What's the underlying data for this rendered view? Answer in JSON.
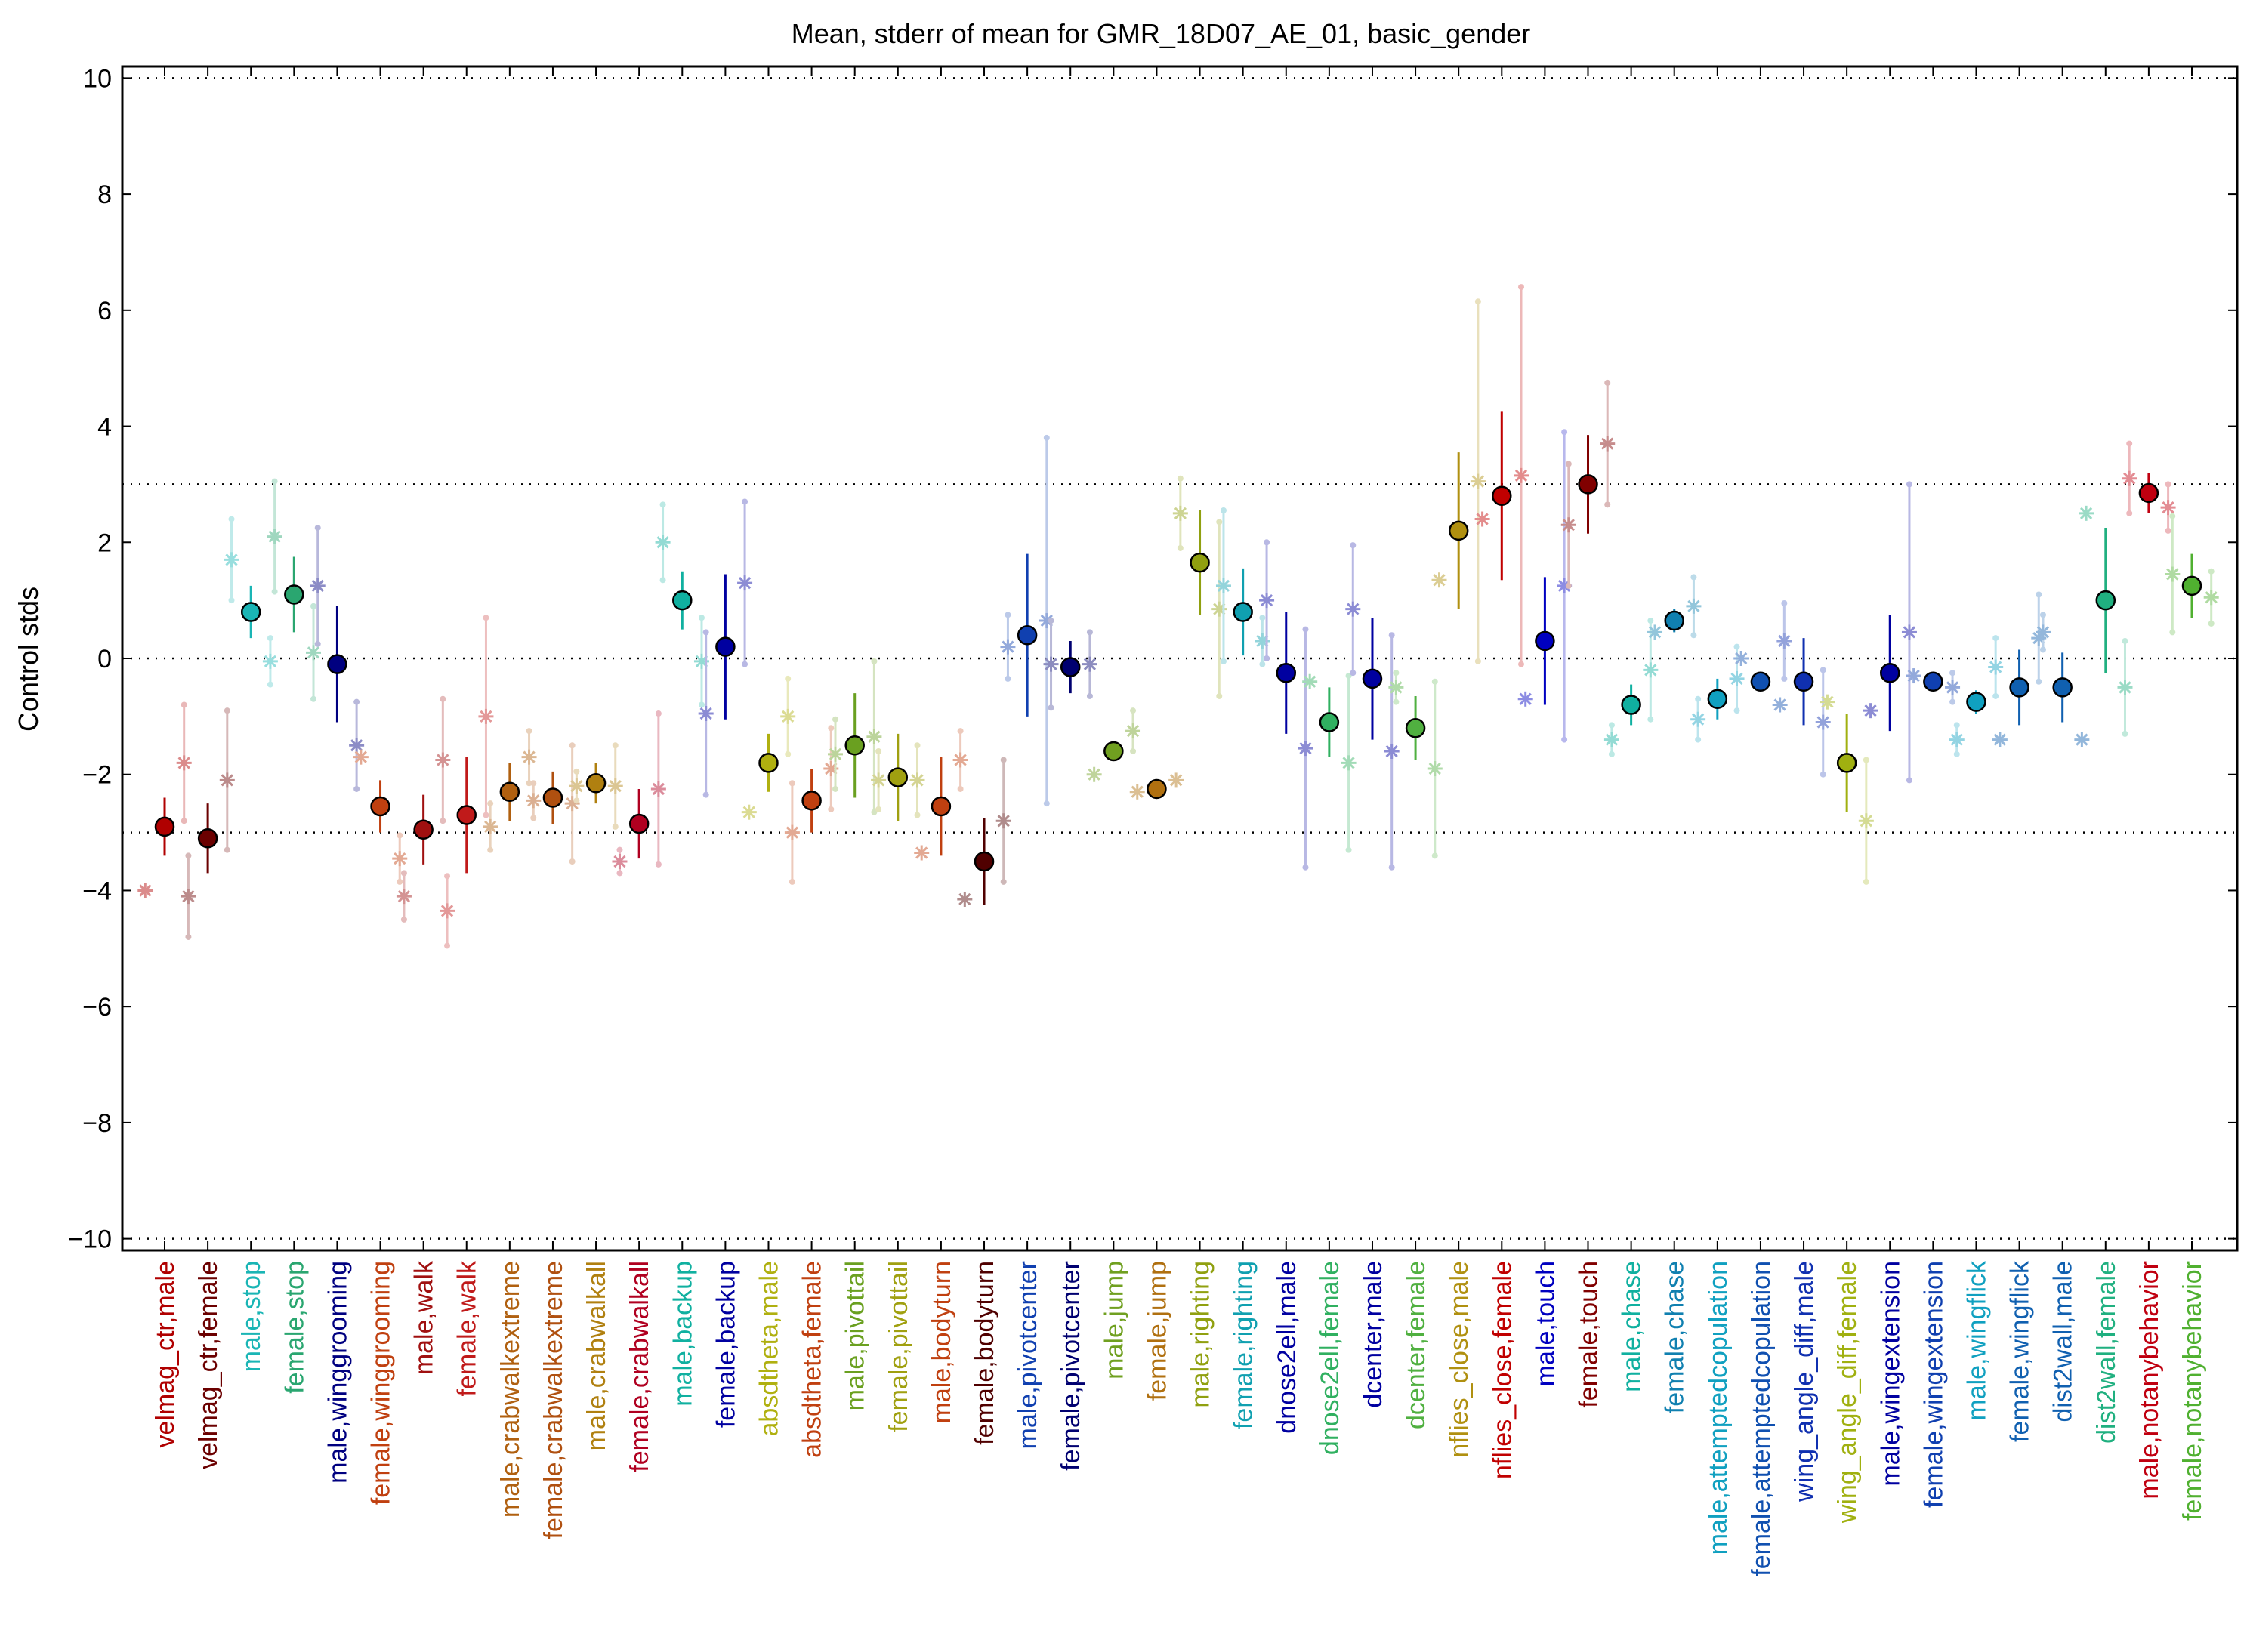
{
  "chart_data": {
    "type": "scatter",
    "title": "Mean, stderr of mean for GMR_18D07_AE_01, basic_gender",
    "ylabel": "Control stds",
    "xlabel": "",
    "ylim": [
      -10.2,
      10.2
    ],
    "yticks": [
      10,
      8,
      6,
      4,
      2,
      0,
      -2,
      -4,
      -6,
      -8,
      -10
    ],
    "ytick_labels": [
      "10",
      "8",
      "6",
      "4",
      "2",
      "0",
      "−2",
      "−4",
      "−6",
      "−8",
      "−10"
    ],
    "reference_lines": [
      10,
      3,
      0,
      -3,
      -10
    ],
    "grid": false,
    "legend": "none",
    "series_note": "Per category: filled circle = mean with stderr bar; faded asterisks = individual experiments with their own stderr bars",
    "categories": [
      {
        "label": "velmag_ctr,male",
        "color": "#b00000",
        "mean": -2.9,
        "err": 0.5,
        "points": [
          {
            "dx": -0.45,
            "y": -4.0,
            "e": 0.0
          },
          {
            "dx": 0.45,
            "y": -1.8,
            "e": 1.0
          }
        ]
      },
      {
        "label": "velmag_ctr,female",
        "color": "#6b0000",
        "mean": -3.1,
        "err": 0.6,
        "points": [
          {
            "dx": -0.45,
            "y": -4.1,
            "e": 0.7
          },
          {
            "dx": 0.45,
            "y": -2.1,
            "e": 1.2
          }
        ]
      },
      {
        "label": "male,stop",
        "color": "#1ab5b5",
        "mean": 0.8,
        "err": 0.45,
        "points": [
          {
            "dx": -0.45,
            "y": 1.7,
            "e": 0.7
          },
          {
            "dx": 0.45,
            "y": -0.05,
            "e": 0.4
          }
        ]
      },
      {
        "label": "female,stop",
        "color": "#2aa670",
        "mean": 1.1,
        "err": 0.65,
        "points": [
          {
            "dx": -0.45,
            "y": 2.1,
            "e": 0.95
          },
          {
            "dx": 0.45,
            "y": 0.1,
            "e": 0.8
          }
        ]
      },
      {
        "label": "male,winggrooming",
        "color": "#000080",
        "mean": -0.1,
        "err": 1.0,
        "points": [
          {
            "dx": -0.45,
            "y": 1.25,
            "e": 1.0
          },
          {
            "dx": 0.45,
            "y": -1.5,
            "e": 0.75
          }
        ]
      },
      {
        "label": "female,winggrooming",
        "color": "#c04010",
        "mean": -2.55,
        "err": 0.45,
        "points": [
          {
            "dx": -0.45,
            "y": -1.7,
            "e": 0.0
          },
          {
            "dx": 0.45,
            "y": -3.45,
            "e": 0.4
          }
        ]
      },
      {
        "label": "male,walk",
        "color": "#a01010",
        "mean": -2.95,
        "err": 0.6,
        "points": [
          {
            "dx": -0.45,
            "y": -4.1,
            "e": 0.4
          },
          {
            "dx": 0.45,
            "y": -1.75,
            "e": 1.05
          }
        ]
      },
      {
        "label": "female,walk",
        "color": "#c01a1a",
        "mean": -2.7,
        "err": 1.0,
        "points": [
          {
            "dx": -0.45,
            "y": -4.35,
            "e": 0.6
          },
          {
            "dx": 0.45,
            "y": -1.0,
            "e": 1.7
          }
        ]
      },
      {
        "label": "male,crabwalkextreme",
        "color": "#b06010",
        "mean": -2.3,
        "err": 0.5,
        "points": [
          {
            "dx": -0.45,
            "y": -2.9,
            "e": 0.4
          },
          {
            "dx": 0.45,
            "y": -1.7,
            "e": 0.45
          }
        ]
      },
      {
        "label": "female,crabwalkextreme",
        "color": "#b05010",
        "mean": -2.4,
        "err": 0.45,
        "points": [
          {
            "dx": -0.45,
            "y": -2.45,
            "e": 0.3
          },
          {
            "dx": 0.45,
            "y": -2.5,
            "e": 1.0
          }
        ]
      },
      {
        "label": "male,crabwalkall",
        "color": "#b08010",
        "mean": -2.15,
        "err": 0.35,
        "points": [
          {
            "dx": -0.45,
            "y": -2.2,
            "e": 0.25
          },
          {
            "dx": 0.45,
            "y": -2.2,
            "e": 0.7
          }
        ]
      },
      {
        "label": "female,crabwalkall",
        "color": "#b00020",
        "mean": -2.85,
        "err": 0.6,
        "points": [
          {
            "dx": -0.45,
            "y": -3.5,
            "e": 0.2
          },
          {
            "dx": 0.45,
            "y": -2.25,
            "e": 1.3
          }
        ]
      },
      {
        "label": "male,backup",
        "color": "#10b0a0",
        "mean": 1.0,
        "err": 0.5,
        "points": [
          {
            "dx": -0.45,
            "y": 2.0,
            "e": 0.65
          },
          {
            "dx": 0.45,
            "y": -0.05,
            "e": 0.75
          }
        ]
      },
      {
        "label": "female,backup",
        "color": "#0000a0",
        "mean": 0.2,
        "err": 1.25,
        "points": [
          {
            "dx": -0.45,
            "y": -0.95,
            "e": 1.4
          },
          {
            "dx": 0.45,
            "y": 1.3,
            "e": 1.4
          }
        ]
      },
      {
        "label": "absdtheta,male",
        "color": "#b0b010",
        "mean": -1.8,
        "err": 0.5,
        "points": [
          {
            "dx": -0.45,
            "y": -2.65,
            "e": 0.0
          },
          {
            "dx": 0.45,
            "y": -1.0,
            "e": 0.65
          }
        ]
      },
      {
        "label": "absdtheta,female",
        "color": "#c04010",
        "mean": -2.45,
        "err": 0.55,
        "points": [
          {
            "dx": -0.45,
            "y": -3.0,
            "e": 0.85
          },
          {
            "dx": 0.45,
            "y": -1.9,
            "e": 0.7
          }
        ]
      },
      {
        "label": "male,pivottail",
        "color": "#6aa020",
        "mean": -1.5,
        "err": 0.9,
        "points": [
          {
            "dx": -0.45,
            "y": -1.65,
            "e": 0.6
          },
          {
            "dx": 0.45,
            "y": -1.35,
            "e": 1.3
          }
        ]
      },
      {
        "label": "female,pivottail",
        "color": "#a0a010",
        "mean": -2.05,
        "err": 0.75,
        "points": [
          {
            "dx": -0.45,
            "y": -2.1,
            "e": 0.5
          },
          {
            "dx": 0.45,
            "y": -2.1,
            "e": 0.6
          }
        ]
      },
      {
        "label": "male,bodyturn",
        "color": "#c04010",
        "mean": -2.55,
        "err": 0.85,
        "points": [
          {
            "dx": -0.45,
            "y": -3.35,
            "e": 0.0
          },
          {
            "dx": 0.45,
            "y": -1.75,
            "e": 0.5
          }
        ]
      },
      {
        "label": "female,bodyturn",
        "color": "#500000",
        "mean": -3.5,
        "err": 0.75,
        "points": [
          {
            "dx": -0.45,
            "y": -4.15,
            "e": 0.0
          },
          {
            "dx": 0.45,
            "y": -2.8,
            "e": 1.05
          }
        ]
      },
      {
        "label": "male,pivotcenter",
        "color": "#1040b0",
        "mean": 0.4,
        "err": 1.4,
        "points": [
          {
            "dx": -0.45,
            "y": 0.2,
            "e": 0.55
          },
          {
            "dx": 0.45,
            "y": 0.65,
            "e": 3.15
          }
        ]
      },
      {
        "label": "female,pivotcenter",
        "color": "#000070",
        "mean": -0.15,
        "err": 0.45,
        "points": [
          {
            "dx": -0.45,
            "y": -0.1,
            "e": 0.75
          },
          {
            "dx": 0.45,
            "y": -0.1,
            "e": 0.55
          }
        ]
      },
      {
        "label": "male,jump",
        "color": "#70a020",
        "mean": -1.6,
        "err": 0.15,
        "points": [
          {
            "dx": -0.45,
            "y": -2.0,
            "e": 0.0
          },
          {
            "dx": 0.45,
            "y": -1.25,
            "e": 0.35
          }
        ]
      },
      {
        "label": "female,jump",
        "color": "#b07010",
        "mean": -2.25,
        "err": 0.1,
        "points": [
          {
            "dx": -0.45,
            "y": -2.3,
            "e": 0.0
          },
          {
            "dx": 0.45,
            "y": -2.1,
            "e": 0.0
          }
        ]
      },
      {
        "label": "male,righting",
        "color": "#90a010",
        "mean": 1.65,
        "err": 0.9,
        "points": [
          {
            "dx": -0.45,
            "y": 2.5,
            "e": 0.6
          },
          {
            "dx": 0.45,
            "y": 0.85,
            "e": 1.5
          }
        ]
      },
      {
        "label": "female,righting",
        "color": "#10a0b0",
        "mean": 0.8,
        "err": 0.75,
        "points": [
          {
            "dx": -0.45,
            "y": 1.25,
            "e": 1.3
          },
          {
            "dx": 0.45,
            "y": 0.3,
            "e": 0.4
          }
        ]
      },
      {
        "label": "dnose2ell,male",
        "color": "#0000a0",
        "mean": -0.25,
        "err": 1.05,
        "points": [
          {
            "dx": -0.45,
            "y": 1.0,
            "e": 1.0
          },
          {
            "dx": 0.45,
            "y": -1.55,
            "e": 2.05
          }
        ]
      },
      {
        "label": "dnose2ell,female",
        "color": "#30b060",
        "mean": -1.1,
        "err": 0.6,
        "points": [
          {
            "dx": -0.45,
            "y": -0.4,
            "e": 0.0
          },
          {
            "dx": 0.45,
            "y": -1.8,
            "e": 1.5
          }
        ]
      },
      {
        "label": "dcenter,male",
        "color": "#0000a0",
        "mean": -0.35,
        "err": 1.05,
        "points": [
          {
            "dx": -0.45,
            "y": 0.85,
            "e": 1.1
          },
          {
            "dx": 0.45,
            "y": -1.6,
            "e": 2.0
          }
        ]
      },
      {
        "label": "dcenter,female",
        "color": "#50b040",
        "mean": -1.2,
        "err": 0.55,
        "points": [
          {
            "dx": -0.45,
            "y": -0.5,
            "e": 0.25
          },
          {
            "dx": 0.45,
            "y": -1.9,
            "e": 1.5
          }
        ]
      },
      {
        "label": "nflies_close,male",
        "color": "#b09010",
        "mean": 2.2,
        "err": 1.35,
        "points": [
          {
            "dx": -0.45,
            "y": 1.35,
            "e": 0.0
          },
          {
            "dx": 0.45,
            "y": 3.05,
            "e": 3.1
          }
        ]
      },
      {
        "label": "nflies_close,female",
        "color": "#c00000",
        "mean": 2.8,
        "err": 1.45,
        "points": [
          {
            "dx": -0.45,
            "y": 2.4,
            "e": 0.0
          },
          {
            "dx": 0.45,
            "y": 3.15,
            "e": 3.25
          }
        ]
      },
      {
        "label": "male,touch",
        "color": "#0000c0",
        "mean": 0.3,
        "err": 1.1,
        "points": [
          {
            "dx": -0.45,
            "y": -0.7,
            "e": 0.0
          },
          {
            "dx": 0.45,
            "y": 1.25,
            "e": 2.65
          }
        ]
      },
      {
        "label": "female,touch",
        "color": "#800000",
        "mean": 3.0,
        "err": 0.85,
        "points": [
          {
            "dx": -0.45,
            "y": 2.3,
            "e": 1.05
          },
          {
            "dx": 0.45,
            "y": 3.7,
            "e": 1.05
          }
        ]
      },
      {
        "label": "male,chase",
        "color": "#10b0a0",
        "mean": -0.8,
        "err": 0.35,
        "points": [
          {
            "dx": -0.45,
            "y": -1.4,
            "e": 0.25
          },
          {
            "dx": 0.45,
            "y": -0.2,
            "e": 0.85
          }
        ]
      },
      {
        "label": "female,chase",
        "color": "#1080b0",
        "mean": 0.65,
        "err": 0.2,
        "points": [
          {
            "dx": -0.45,
            "y": 0.45,
            "e": 0.0
          },
          {
            "dx": 0.45,
            "y": 0.9,
            "e": 0.5
          }
        ]
      },
      {
        "label": "male,attemptedcopulation",
        "color": "#10a0c0",
        "mean": -0.7,
        "err": 0.35,
        "points": [
          {
            "dx": -0.45,
            "y": -1.05,
            "e": 0.35
          },
          {
            "dx": 0.45,
            "y": -0.35,
            "e": 0.55
          }
        ]
      },
      {
        "label": "female,attemptedcopulation",
        "color": "#1050b0",
        "mean": -0.4,
        "err": 0.15,
        "points": [
          {
            "dx": -0.45,
            "y": 0.0,
            "e": 0.0
          },
          {
            "dx": 0.45,
            "y": -0.8,
            "e": 0.0
          }
        ]
      },
      {
        "label": "wing_angle_diff,male",
        "color": "#1030b0",
        "mean": -0.4,
        "err": 0.75,
        "points": [
          {
            "dx": -0.45,
            "y": 0.3,
            "e": 0.65
          },
          {
            "dx": 0.45,
            "y": -1.1,
            "e": 0.9
          }
        ]
      },
      {
        "label": "wing_angle_diff,female",
        "color": "#a0b010",
        "mean": -1.8,
        "err": 0.85,
        "points": [
          {
            "dx": -0.45,
            "y": -0.75,
            "e": 0.0
          },
          {
            "dx": 0.45,
            "y": -2.8,
            "e": 1.05
          }
        ]
      },
      {
        "label": "male,wingextension",
        "color": "#0000a0",
        "mean": -0.25,
        "err": 1.0,
        "points": [
          {
            "dx": -0.45,
            "y": -0.9,
            "e": 0.0
          },
          {
            "dx": 0.45,
            "y": 0.45,
            "e": 2.55
          }
        ]
      },
      {
        "label": "female,wingextension",
        "color": "#1040b0",
        "mean": -0.4,
        "err": 0.1,
        "points": [
          {
            "dx": -0.45,
            "y": -0.3,
            "e": 0.0
          },
          {
            "dx": 0.45,
            "y": -0.5,
            "e": 0.25
          }
        ]
      },
      {
        "label": "male,wingflick",
        "color": "#10a0c0",
        "mean": -0.75,
        "err": 0.2,
        "points": [
          {
            "dx": -0.45,
            "y": -1.4,
            "e": 0.25
          },
          {
            "dx": 0.45,
            "y": -0.15,
            "e": 0.5
          }
        ]
      },
      {
        "label": "female,wingflick",
        "color": "#1060b0",
        "mean": -0.5,
        "err": 0.65,
        "points": [
          {
            "dx": -0.45,
            "y": -1.4,
            "e": 0.0
          },
          {
            "dx": 0.45,
            "y": 0.35,
            "e": 0.75
          }
        ]
      },
      {
        "label": "dist2wall,male",
        "color": "#1060b0",
        "mean": -0.5,
        "err": 0.6,
        "points": [
          {
            "dx": -0.45,
            "y": 0.45,
            "e": 0.3
          },
          {
            "dx": 0.45,
            "y": -1.4,
            "e": 0.0
          }
        ]
      },
      {
        "label": "dist2wall,female",
        "color": "#20b080",
        "mean": 1.0,
        "err": 1.25,
        "points": [
          {
            "dx": -0.45,
            "y": 2.5,
            "e": 0.0
          },
          {
            "dx": 0.45,
            "y": -0.5,
            "e": 0.8
          }
        ]
      },
      {
        "label": "male,notanybehavior",
        "color": "#c00010",
        "mean": 2.85,
        "err": 0.35,
        "points": [
          {
            "dx": -0.45,
            "y": 3.1,
            "e": 0.6
          },
          {
            "dx": 0.45,
            "y": 2.6,
            "e": 0.4
          }
        ]
      },
      {
        "label": "female,notanybehavior",
        "color": "#50b030",
        "mean": 1.25,
        "err": 0.55,
        "points": [
          {
            "dx": -0.45,
            "y": 1.45,
            "e": 1.0
          },
          {
            "dx": 0.45,
            "y": 1.05,
            "e": 0.45
          }
        ]
      }
    ]
  }
}
